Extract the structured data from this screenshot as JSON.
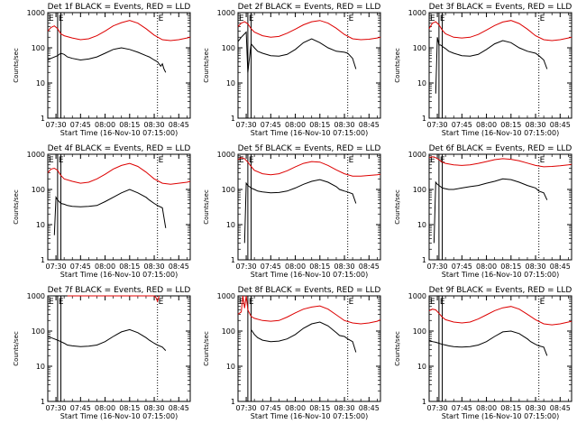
{
  "window": {
    "title": ""
  },
  "shared": {
    "ylabel": "Counts/sec",
    "xlabel": "Start Time (16-Nov-10 07:15:00)",
    "yticks": [
      "1",
      "10",
      "100",
      "1000"
    ],
    "xticks": [
      "07:30",
      "07:45",
      "08:00",
      "08:15",
      "08:30",
      "08:45"
    ],
    "marker_label": "E",
    "colors": {
      "black_series": "#000000",
      "red_series": "#dd0000",
      "frame": "#000000",
      "background": "#ffffff"
    }
  },
  "chart_data": [
    {
      "type": "line",
      "title": "Det 1f BLACK = Events, RED = LLD",
      "xlabel": "Start Time (16-Nov-10 07:15:00)",
      "ylabel": "Counts/sec",
      "x_unit": "minutes after 07:15:00",
      "xlim": [
        10,
        97
      ],
      "ylim": [
        1,
        1000
      ],
      "y_scale": "log",
      "marker_lines_x": [
        16,
        18,
        77
      ],
      "series": [
        {
          "name": "BLACK = Events",
          "color": "#000000",
          "x": [
            10,
            12,
            16,
            18,
            20,
            22,
            25,
            30,
            35,
            40,
            45,
            50,
            55,
            60,
            65,
            70,
            72,
            75,
            77,
            79,
            80,
            81,
            82
          ],
          "y": [
            45,
            50,
            60,
            70,
            65,
            55,
            50,
            45,
            48,
            55,
            70,
            90,
            100,
            90,
            75,
            60,
            55,
            45,
            40,
            30,
            35,
            25,
            20
          ]
        },
        {
          "name": "RED = LLD",
          "color": "#dd0000",
          "x": [
            10,
            12,
            14,
            16,
            18,
            20,
            25,
            30,
            35,
            40,
            45,
            50,
            55,
            60,
            65,
            70,
            75,
            80,
            85,
            90,
            95,
            97
          ],
          "y": [
            300,
            380,
            420,
            350,
            250,
            220,
            190,
            170,
            180,
            220,
            300,
            420,
            520,
            600,
            500,
            350,
            230,
            170,
            160,
            170,
            190,
            200
          ]
        }
      ]
    },
    {
      "type": "line",
      "title": "Det 2f BLACK = Events, RED = LLD",
      "xlabel": "Start Time (16-Nov-10 07:15:00)",
      "ylabel": "Counts/sec",
      "x_unit": "minutes after 07:15:00",
      "xlim": [
        10,
        97
      ],
      "ylim": [
        1,
        1000
      ],
      "y_scale": "log",
      "marker_lines_x": [
        16,
        18,
        77
      ],
      "series": [
        {
          "name": "BLACK = Events",
          "color": "#000000",
          "x": [
            10,
            12,
            15,
            16,
            18,
            20,
            22,
            25,
            30,
            35,
            40,
            45,
            50,
            55,
            60,
            65,
            70,
            75,
            77,
            80,
            82
          ],
          "y": [
            150,
            200,
            280,
            20,
            130,
            100,
            80,
            70,
            60,
            58,
            65,
            90,
            140,
            180,
            140,
            100,
            80,
            75,
            70,
            50,
            25
          ]
        },
        {
          "name": "RED = LLD",
          "color": "#dd0000",
          "x": [
            10,
            12,
            14,
            16,
            18,
            20,
            25,
            30,
            35,
            40,
            45,
            50,
            55,
            60,
            65,
            70,
            75,
            80,
            85,
            90,
            95,
            97
          ],
          "y": [
            400,
            500,
            550,
            480,
            350,
            280,
            220,
            200,
            210,
            260,
            340,
            450,
            550,
            600,
            500,
            360,
            240,
            180,
            170,
            175,
            190,
            200
          ]
        }
      ]
    },
    {
      "type": "line",
      "title": "Det 3f BLACK = Events, RED = LLD",
      "xlabel": "Start Time (16-Nov-10 07:15:00)",
      "ylabel": "Counts/sec",
      "x_unit": "minutes after 07:15:00",
      "xlim": [
        10,
        97
      ],
      "ylim": [
        1,
        1000
      ],
      "y_scale": "log",
      "marker_lines_x": [
        16,
        18,
        77
      ],
      "series": [
        {
          "name": "BLACK = Events",
          "color": "#000000",
          "x": [
            14,
            15,
            16,
            17,
            18,
            20,
            22,
            25,
            30,
            35,
            40,
            45,
            50,
            55,
            60,
            65,
            70,
            75,
            77,
            80,
            82
          ],
          "y": [
            5,
            200,
            120,
            120,
            110,
            95,
            80,
            70,
            60,
            58,
            65,
            90,
            130,
            160,
            140,
            100,
            80,
            70,
            60,
            45,
            25
          ]
        },
        {
          "name": "RED = LLD",
          "color": "#dd0000",
          "x": [
            10,
            12,
            14,
            16,
            18,
            20,
            25,
            30,
            35,
            40,
            45,
            50,
            55,
            60,
            65,
            70,
            75,
            80,
            85,
            90,
            95,
            97
          ],
          "y": [
            350,
            500,
            550,
            450,
            320,
            250,
            200,
            190,
            200,
            240,
            320,
            430,
            540,
            600,
            490,
            340,
            220,
            170,
            160,
            170,
            190,
            200
          ]
        }
      ]
    },
    {
      "type": "line",
      "title": "Det 4f BLACK = Events, RED = LLD",
      "xlabel": "Start Time (16-Nov-10 07:15:00)",
      "ylabel": "Counts/sec",
      "x_unit": "minutes after 07:15:00",
      "xlim": [
        10,
        97
      ],
      "ylim": [
        1,
        1000
      ],
      "y_scale": "log",
      "marker_lines_x": [
        16,
        18,
        77
      ],
      "series": [
        {
          "name": "BLACK = Events",
          "color": "#000000",
          "x": [
            14,
            15,
            16,
            17,
            18,
            20,
            22,
            25,
            30,
            35,
            40,
            45,
            50,
            55,
            60,
            65,
            70,
            72,
            75,
            77,
            80,
            82
          ],
          "y": [
            5,
            60,
            50,
            45,
            40,
            38,
            35,
            33,
            32,
            33,
            35,
            45,
            60,
            80,
            100,
            80,
            60,
            50,
            40,
            35,
            30,
            8
          ]
        },
        {
          "name": "RED = LLD",
          "color": "#dd0000",
          "x": [
            10,
            12,
            14,
            16,
            18,
            20,
            25,
            30,
            35,
            40,
            45,
            50,
            55,
            60,
            65,
            70,
            75,
            80,
            85,
            90,
            95,
            97
          ],
          "y": [
            300,
            380,
            400,
            350,
            250,
            200,
            170,
            150,
            160,
            200,
            270,
            380,
            480,
            550,
            450,
            310,
            200,
            150,
            140,
            150,
            160,
            170
          ]
        }
      ]
    },
    {
      "type": "line",
      "title": "Det 5f BLACK = Events, RED = LLD",
      "xlabel": "Start Time (16-Nov-10 07:15:00)",
      "ylabel": "Counts/sec",
      "x_unit": "minutes after 07:15:00",
      "xlim": [
        10,
        97
      ],
      "ylim": [
        1,
        1000
      ],
      "y_scale": "log",
      "marker_lines_x": [
        16,
        18,
        77
      ],
      "series": [
        {
          "name": "BLACK = Events",
          "color": "#000000",
          "x": [
            14,
            15,
            16,
            17,
            18,
            20,
            22,
            25,
            30,
            35,
            40,
            45,
            50,
            55,
            60,
            65,
            70,
            72,
            75,
            77,
            80,
            82
          ],
          "y": [
            3,
            150,
            130,
            120,
            110,
            100,
            90,
            85,
            80,
            82,
            90,
            110,
            140,
            170,
            190,
            160,
            120,
            100,
            90,
            85,
            75,
            40
          ]
        },
        {
          "name": "RED = LLD",
          "color": "#dd0000",
          "x": [
            10,
            12,
            14,
            16,
            18,
            20,
            25,
            30,
            35,
            40,
            45,
            50,
            55,
            60,
            65,
            70,
            75,
            80,
            85,
            90,
            95,
            97
          ],
          "y": [
            700,
            800,
            750,
            600,
            450,
            350,
            280,
            260,
            280,
            340,
            440,
            550,
            620,
            600,
            480,
            360,
            280,
            240,
            240,
            250,
            260,
            270
          ]
        }
      ]
    },
    {
      "type": "line",
      "title": "Det 6f BLACK = Events, RED = LLD",
      "xlabel": "Start Time (16-Nov-10 07:15:00)",
      "ylabel": "Counts/sec",
      "x_unit": "minutes after 07:15:00",
      "xlim": [
        10,
        97
      ],
      "ylim": [
        1,
        1000
      ],
      "y_scale": "log",
      "marker_lines_x": [
        16,
        18,
        77
      ],
      "series": [
        {
          "name": "BLACK = Events",
          "color": "#000000",
          "x": [
            13,
            14,
            15,
            16,
            17,
            18,
            20,
            22,
            25,
            30,
            35,
            40,
            45,
            50,
            55,
            60,
            65,
            70,
            75,
            77,
            80,
            82
          ],
          "y": [
            3,
            160,
            140,
            130,
            120,
            110,
            105,
            100,
            100,
            110,
            120,
            130,
            150,
            170,
            200,
            190,
            160,
            130,
            110,
            90,
            80,
            50
          ]
        },
        {
          "name": "RED = LLD",
          "color": "#dd0000",
          "x": [
            10,
            12,
            14,
            16,
            18,
            20,
            25,
            30,
            35,
            40,
            45,
            50,
            55,
            60,
            65,
            70,
            75,
            80,
            85,
            90,
            95,
            97
          ],
          "y": [
            800,
            850,
            800,
            700,
            600,
            550,
            500,
            480,
            500,
            550,
            620,
            700,
            750,
            720,
            650,
            560,
            480,
            440,
            450,
            470,
            500,
            520
          ]
        }
      ]
    },
    {
      "type": "line",
      "title": "Det 7f BLACK = Events, RED = LLD",
      "xlabel": "Start Time (16-Nov-10 07:15:00)",
      "ylabel": "Counts/sec",
      "x_unit": "minutes after 07:15:00",
      "xlim": [
        10,
        97
      ],
      "ylim": [
        1,
        1000
      ],
      "y_scale": "log",
      "marker_lines_x": [
        16,
        18,
        77
      ],
      "series": [
        {
          "name": "BLACK = Events",
          "color": "#000000",
          "x": [
            10,
            12,
            14,
            16,
            18,
            20,
            22,
            25,
            30,
            35,
            40,
            45,
            50,
            55,
            60,
            65,
            70,
            72,
            75,
            77,
            80,
            82
          ],
          "y": [
            70,
            65,
            60,
            55,
            50,
            45,
            40,
            38,
            36,
            37,
            40,
            50,
            70,
            95,
            110,
            90,
            65,
            55,
            45,
            40,
            35,
            28
          ]
        },
        {
          "name": "RED = LLD",
          "color": "#dd0000",
          "x": [
            22,
            25,
            30,
            35,
            40,
            45,
            50,
            55,
            60,
            65,
            70,
            75,
            76,
            77,
            78
          ],
          "y": [
            1000,
            1000,
            1000,
            1000,
            1000,
            1000,
            1000,
            1000,
            1000,
            1000,
            1000,
            1000,
            900,
            700,
            1000
          ]
        }
      ]
    },
    {
      "type": "line",
      "title": "Det 8f BLACK = Events, RED = LLD",
      "xlabel": "Start Time (16-Nov-10 07:15:00)",
      "ylabel": "Counts/sec",
      "x_unit": "minutes after 07:15:00",
      "xlim": [
        10,
        97
      ],
      "ylim": [
        1,
        1000
      ],
      "y_scale": "log",
      "marker_lines_x": [
        16,
        18,
        77
      ],
      "series": [
        {
          "name": "BLACK = Events",
          "color": "#000000",
          "x": [
            18,
            20,
            22,
            25,
            30,
            35,
            40,
            45,
            50,
            55,
            60,
            65,
            70,
            72,
            75,
            77,
            80,
            82
          ],
          "y": [
            110,
            80,
            65,
            55,
            50,
            52,
            60,
            80,
            120,
            160,
            180,
            140,
            90,
            75,
            70,
            60,
            50,
            25
          ]
        },
        {
          "name": "RED = LLD",
          "color": "#dd0000",
          "x": [
            10,
            12,
            13,
            14,
            15,
            16,
            18,
            20,
            25,
            30,
            35,
            40,
            45,
            50,
            55,
            60,
            65,
            70,
            75,
            80,
            85,
            90,
            95,
            97
          ],
          "y": [
            300,
            350,
            1000,
            450,
            1000,
            400,
            260,
            230,
            200,
            190,
            200,
            250,
            330,
            420,
            480,
            520,
            420,
            290,
            200,
            170,
            160,
            170,
            190,
            210
          ]
        }
      ]
    },
    {
      "type": "line",
      "title": "Det 9f BLACK = Events, RED = LLD",
      "xlabel": "Start Time (16-Nov-10 07:15:00)",
      "ylabel": "Counts/sec",
      "x_unit": "minutes after 07:15:00",
      "xlim": [
        10,
        97
      ],
      "ylim": [
        1,
        1000
      ],
      "y_scale": "log",
      "marker_lines_x": [
        16,
        18,
        77
      ],
      "series": [
        {
          "name": "BLACK = Events",
          "color": "#000000",
          "x": [
            10,
            12,
            14,
            16,
            18,
            20,
            22,
            25,
            30,
            35,
            40,
            45,
            50,
            55,
            60,
            65,
            70,
            72,
            75,
            77,
            80,
            82
          ],
          "y": [
            55,
            50,
            48,
            45,
            42,
            40,
            38,
            36,
            35,
            36,
            40,
            50,
            70,
            95,
            100,
            85,
            60,
            50,
            42,
            38,
            35,
            20
          ]
        },
        {
          "name": "RED = LLD",
          "color": "#dd0000",
          "x": [
            10,
            12,
            14,
            16,
            18,
            20,
            25,
            30,
            35,
            40,
            45,
            50,
            55,
            60,
            65,
            70,
            75,
            80,
            85,
            90,
            95,
            97
          ],
          "y": [
            380,
            420,
            400,
            320,
            250,
            210,
            180,
            170,
            180,
            220,
            290,
            380,
            460,
            500,
            420,
            300,
            210,
            160,
            150,
            160,
            180,
            190
          ]
        }
      ]
    }
  ]
}
